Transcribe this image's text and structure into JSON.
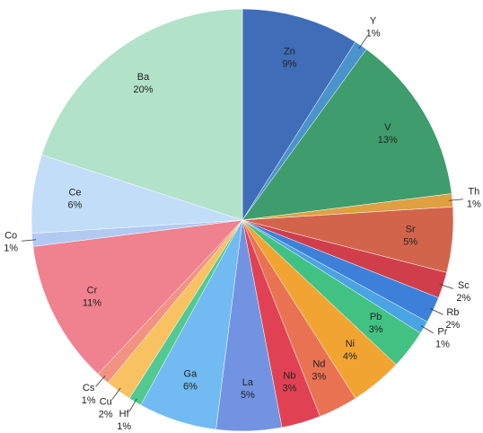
{
  "chart_data": {
    "type": "pie",
    "categories": [
      "Zn",
      "Y",
      "V",
      "Th",
      "Sr",
      "Sc",
      "Rb",
      "Pr",
      "Pb",
      "Ni",
      "Nd",
      "Nb",
      "La",
      "Ga",
      "Hf",
      "Cu",
      "Cs",
      "Cr",
      "Co",
      "Ce",
      "Ba"
    ],
    "values": [
      9,
      1,
      13,
      1,
      5,
      2,
      2,
      1,
      3,
      4,
      3,
      3,
      5,
      6,
      1,
      2,
      1,
      11,
      1,
      6,
      20
    ],
    "value_labels": [
      "9%",
      "1%",
      "13%",
      "1%",
      "5%",
      "2%",
      "2%",
      "1%",
      "3%",
      "4%",
      "3%",
      "3%",
      "5%",
      "6%",
      "1%",
      "2%",
      "1%",
      "11%",
      "1%",
      "6%",
      "20%"
    ],
    "colors": [
      "#3f6db8",
      "#4b93cc",
      "#3f9c6c",
      "#dea040",
      "#d2644c",
      "#d03e4c",
      "#3d80da",
      "#4aa3e2",
      "#42c282",
      "#f2a432",
      "#e87252",
      "#e04254",
      "#7293e2",
      "#72baf2",
      "#52c992",
      "#f8c262",
      "#f29282",
      "#f0818f",
      "#b2caf2",
      "#c2ddf8",
      "#b2e2ca"
    ]
  }
}
